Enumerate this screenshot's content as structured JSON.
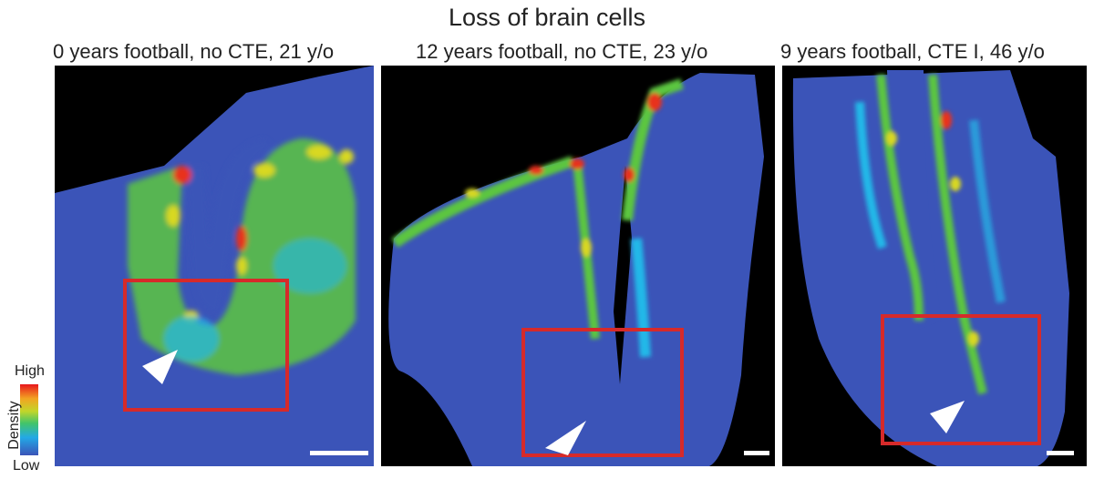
{
  "title": "Loss of brain cells",
  "panels": [
    {
      "label": "0 years football, no CTE, 21 y/o"
    },
    {
      "label": "12 years football, no CTE, 23 y/o"
    },
    {
      "label": "9 years football, CTE I, 46 y/o"
    }
  ],
  "colorbar": {
    "high": "High",
    "low": "Low",
    "label": "Density"
  },
  "colors": {
    "tissue": "#3b54b8",
    "cyan": "#23b8e8",
    "green": "#5cc640",
    "yellow": "#d8d820",
    "red": "#e8321e",
    "box": "#d62a2a"
  }
}
